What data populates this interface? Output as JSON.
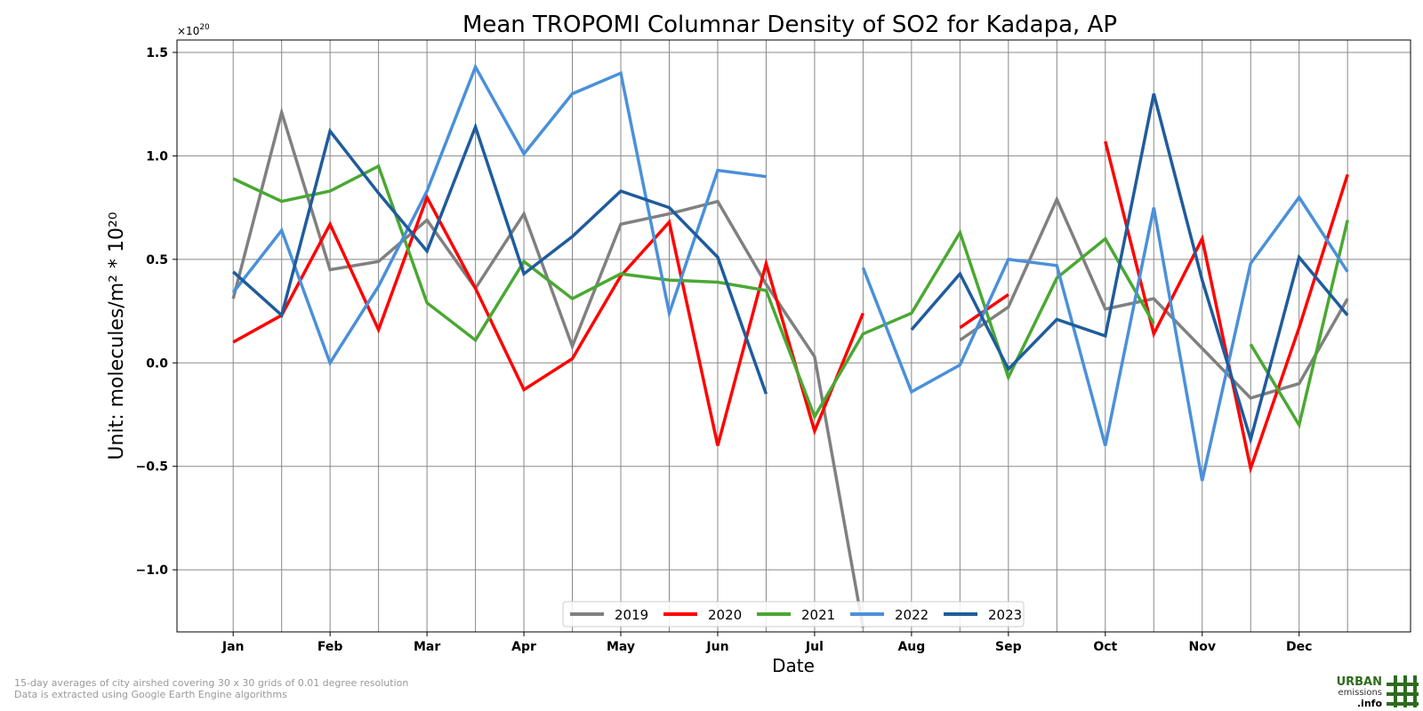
{
  "chart_data": {
    "type": "line",
    "title": "Mean TROPOMI Columnar Density of SO2 for Kadapa, AP",
    "xlabel": "Date",
    "ylabel": "Unit: molecules/m² * 10²⁰",
    "y_multiplier_label": "×10",
    "y_multiplier_exp": "20",
    "ylim": [
      -1.3,
      1.56
    ],
    "xlim": [
      0.42,
      13.15
    ],
    "grid": true,
    "legend_position": "bottom-center",
    "categories": [
      "Jan",
      "Feb",
      "Mar",
      "Apr",
      "May",
      "Jun",
      "Jul",
      "Aug",
      "Sep",
      "Oct",
      "Nov",
      "Dec"
    ],
    "x": [
      1,
      1.5,
      2,
      2.5,
      3,
      3.5,
      4,
      4.5,
      5,
      5.5,
      6,
      6.5,
      7,
      7.5,
      8,
      8.5,
      9,
      9.5,
      10,
      10.5,
      11,
      11.5,
      12,
      12.5
    ],
    "yticks": [
      -1.0,
      -0.5,
      0.0,
      0.5,
      1.0,
      1.5
    ],
    "ytick_labels": [
      "−1.0",
      "−0.5",
      "0.0",
      "0.5",
      "1.0",
      "1.5"
    ],
    "series": [
      {
        "name": "2019",
        "color": "#808080",
        "values": [
          0.31,
          1.21,
          0.45,
          0.49,
          0.69,
          0.36,
          0.72,
          0.08,
          0.67,
          0.72,
          0.78,
          0.38,
          0.03,
          -1.28,
          null,
          0.11,
          0.27,
          0.79,
          0.26,
          0.31,
          0.07,
          -0.17,
          -0.1,
          0.31
        ]
      },
      {
        "name": "2020",
        "color": "#ff0000",
        "values": [
          0.1,
          0.23,
          0.67,
          0.16,
          0.8,
          0.36,
          -0.13,
          0.02,
          0.42,
          0.68,
          -0.4,
          0.48,
          -0.33,
          0.24,
          null,
          0.17,
          0.33,
          null,
          1.07,
          0.14,
          0.6,
          -0.51,
          0.17,
          0.91
        ]
      },
      {
        "name": "2021",
        "color": "#4aa832",
        "values": [
          0.89,
          0.78,
          0.83,
          0.95,
          0.29,
          0.11,
          0.49,
          0.31,
          0.43,
          0.4,
          0.39,
          0.35,
          -0.26,
          0.14,
          0.24,
          0.63,
          -0.07,
          0.41,
          0.6,
          0.19,
          null,
          0.09,
          -0.3,
          0.69
        ]
      },
      {
        "name": "2022",
        "color": "#4a90d9",
        "values": [
          0.34,
          0.64,
          0.0,
          0.37,
          0.83,
          1.43,
          1.01,
          1.3,
          1.4,
          0.24,
          0.93,
          0.9,
          null,
          0.46,
          -0.14,
          -0.01,
          0.5,
          0.47,
          -0.4,
          0.75,
          -0.57,
          0.48,
          0.8,
          0.44
        ]
      },
      {
        "name": "2023",
        "color": "#1f5c9c",
        "values": [
          0.44,
          0.23,
          1.12,
          0.82,
          0.54,
          1.14,
          0.43,
          0.61,
          0.83,
          0.75,
          0.51,
          -0.15,
          null,
          null,
          0.16,
          0.43,
          -0.03,
          0.21,
          0.13,
          1.3,
          0.4,
          -0.37,
          0.51,
          0.23
        ]
      }
    ]
  },
  "footnote": {
    "line1": "15-day averages of city airshed covering 30 x 30 grids of 0.01 degree resolution",
    "line2": "Data is extracted using Google Earth Engine algorithms"
  },
  "logo": {
    "line1": "URBAN",
    "line2": "emissions",
    "line3": ".info",
    "color": "#2e6b1f"
  }
}
